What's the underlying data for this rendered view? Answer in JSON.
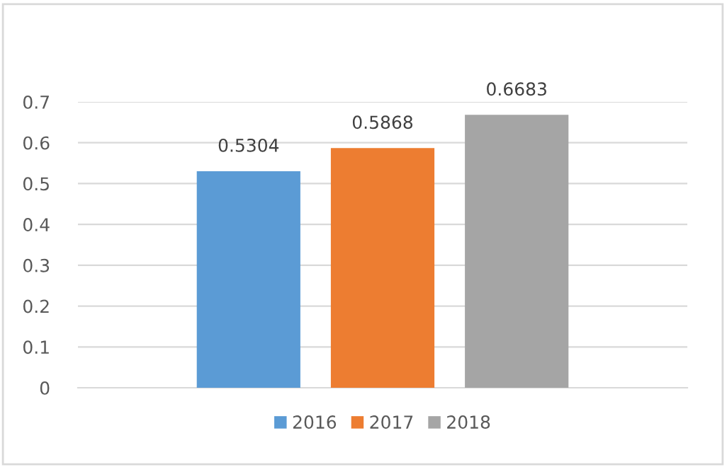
{
  "chart_data": {
    "type": "bar",
    "categories": [
      null
    ],
    "series": [
      {
        "name": "2016",
        "color": "#5b9bd5",
        "values": [
          0.5304
        ]
      },
      {
        "name": "2017",
        "color": "#ed7d31",
        "values": [
          0.5868
        ]
      },
      {
        "name": "2018",
        "color": "#a5a5a5",
        "values": [
          0.6683
        ]
      }
    ],
    "ylim": [
      0,
      0.7
    ],
    "yticks": [
      0,
      0.1,
      0.2,
      0.3,
      0.4,
      0.5,
      0.6,
      0.7
    ],
    "grid": "y",
    "legend": "bottom",
    "data_labels": true
  }
}
